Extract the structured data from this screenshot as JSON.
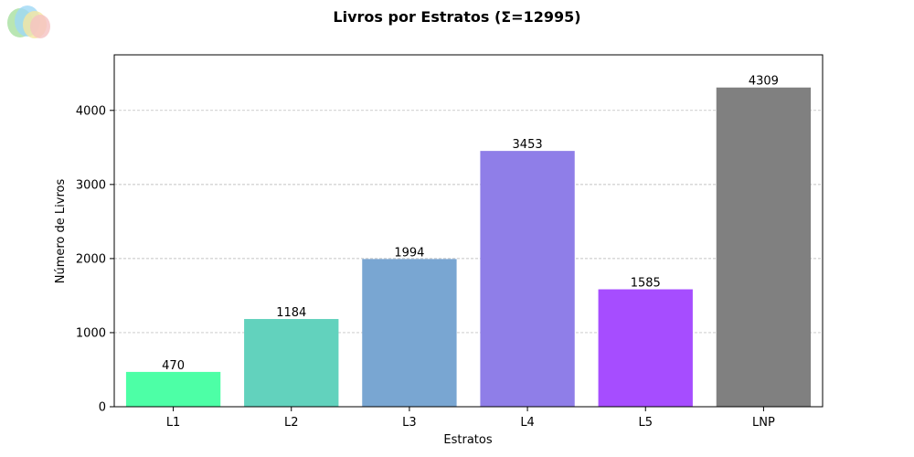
{
  "chart_data": {
    "type": "bar",
    "title": "Livros por Estratos (Σ=12995)",
    "xlabel": "Estratos",
    "ylabel": "Número de Livros",
    "categories": [
      "L1",
      "L2",
      "L3",
      "L4",
      "L5",
      "LNP"
    ],
    "values": [
      470,
      1184,
      1994,
      3453,
      1585,
      4309
    ],
    "colors": [
      "#4dffa6",
      "#62d2bd",
      "#79a6d2",
      "#8f7ee8",
      "#a64dff",
      "#808080"
    ],
    "ylim": [
      0,
      4750
    ],
    "yticks": [
      0,
      1000,
      2000,
      3000,
      4000
    ],
    "grid": "y-dashed",
    "data_labels": true
  },
  "logo": {
    "colors": [
      "#a8e0a0",
      "#9fd8f5",
      "#f5e6a0",
      "#f5c2c2"
    ]
  }
}
